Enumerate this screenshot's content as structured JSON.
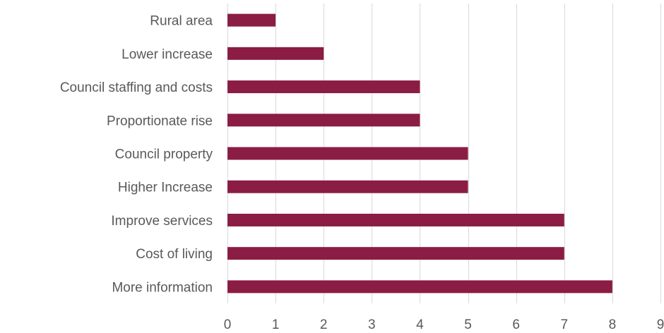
{
  "chart_data": {
    "type": "bar",
    "orientation": "horizontal",
    "categories": [
      "Rural area",
      "Lower increase",
      "Council staffing and costs",
      "Proportionate rise",
      "Council property",
      "Higher Increase",
      "Improve services",
      "Cost of living",
      "More information"
    ],
    "values": [
      1,
      2,
      4,
      4,
      5,
      5,
      7,
      7,
      8
    ],
    "xlim": [
      0,
      9
    ],
    "x_ticks": [
      0,
      1,
      2,
      3,
      4,
      5,
      6,
      7,
      8,
      9
    ],
    "grid": "vertical",
    "legend": "none",
    "title": "",
    "xlabel": "",
    "ylabel": ""
  },
  "colors": {
    "bar": "#8b1c44",
    "grid": "#d9d9d9",
    "text": "#595959"
  }
}
